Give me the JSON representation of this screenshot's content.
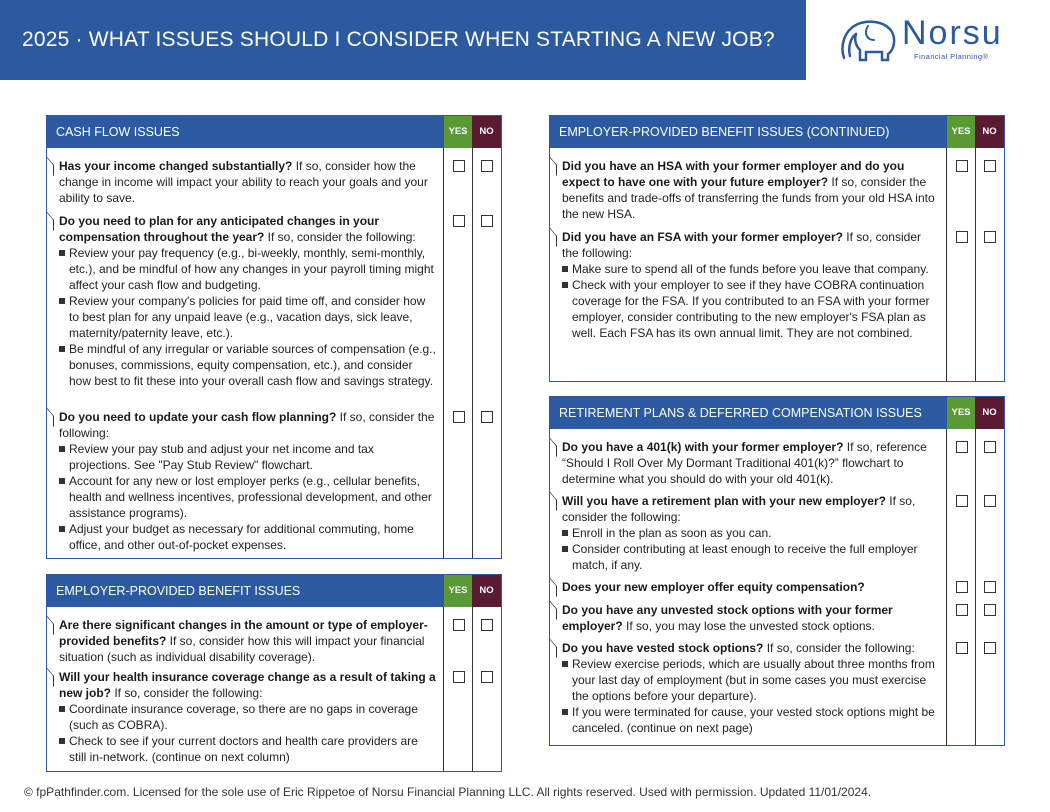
{
  "header": {
    "title": "2025 · WHAT ISSUES SHOULD I CONSIDER WHEN STARTING A NEW JOB?",
    "logo_name": "Norsu",
    "logo_tagline": "Financial Planning®",
    "logo_icon": "elephant-icon"
  },
  "columns": {
    "yes": "YES",
    "no": "NO"
  },
  "panels": {
    "cash_flow": {
      "title": "CASH FLOW ISSUES",
      "items": [
        {
          "q": "Has your income changed substantially?",
          "text": " If so, consider how the change in income will impact your ability to reach your goals and your ability to save.",
          "bullets": []
        },
        {
          "q": "Do you need to plan for any anticipated changes in your compensation throughout the year?",
          "text": " If so, consider the following:",
          "bullets": [
            "Review your pay frequency (e.g., bi-weekly, monthly, semi-monthly, etc.), and be mindful of how any changes in your payroll timing might affect your cash flow and budgeting.",
            "Review your company's policies for paid time off, and consider how to best plan for any unpaid leave (e.g., vacation days, sick leave, maternity/paternity leave, etc.).",
            "Be mindful of any irregular or variable sources of compensation (e.g., bonuses, commissions, equity compensation, etc.), and consider how best to fit these into your overall cash flow and savings strategy."
          ]
        },
        {
          "q": "Do you need to update your cash flow planning?",
          "text": " If so, consider the following:",
          "bullets": [
            "Review your pay stub and adjust your net income and tax projections. See \"Pay Stub Review\" flowchart.",
            "Account for any new or lost employer perks (e.g., cellular benefits, health and wellness incentives, professional development, and other assistance programs).",
            "Adjust your budget as necessary for additional commuting, home office, and other out-of-pocket expenses."
          ]
        }
      ]
    },
    "benefits": {
      "title": "EMPLOYER-PROVIDED BENEFIT ISSUES",
      "items": [
        {
          "q": "Are there significant changes in the amount or type of employer-provided benefits?",
          "text": " If so, consider how this will impact your financial situation (such as individual disability coverage).",
          "bullets": []
        },
        {
          "q": "Will your health insurance coverage change as a result of taking a new job?",
          "text": " If so, consider the following:",
          "bullets": [
            "Coordinate insurance coverage, so there are no gaps in coverage (such as COBRA).",
            "Check to see if your current doctors and health care providers are still in-network. (continue on next column)"
          ]
        }
      ]
    },
    "benefits_cont": {
      "title": "EMPLOYER-PROVIDED BENEFIT ISSUES (CONTINUED)",
      "items": [
        {
          "q": "Did you have an HSA with your former employer and do you expect to have one with your future employer?",
          "text": " If so, consider the benefits and trade-offs of transferring the funds from your old HSA into the new HSA.",
          "bullets": []
        },
        {
          "q": "Did you have an FSA with your former employer?",
          "text": " If so, consider the following:",
          "bullets": [
            "Make sure to spend all of the funds before you leave that company.",
            "Check with your employer to see if they have COBRA continuation coverage for the FSA. If you contributed to an FSA with your former employer, consider contributing to the new employer's FSA plan as well. Each FSA has its own annual limit. They are not combined."
          ]
        }
      ]
    },
    "retirement": {
      "title": "RETIREMENT PLANS & DEFERRED COMPENSATION ISSUES",
      "items": [
        {
          "q": "Do you have a 401(k) with your former employer?",
          "text": " If so, reference “Should I Roll Over My Dormant Traditional 401(k)?” flowchart to determine what you should do with your old 401(k).",
          "bullets": []
        },
        {
          "q": "Will you have a retirement plan with your new employer?",
          "text": " If so, consider the following:",
          "bullets": [
            "Enroll in the plan as soon as you can.",
            "Consider contributing at least enough to receive the full employer match, if any."
          ]
        },
        {
          "q": "Does your new employer offer equity compensation?",
          "text": "",
          "bullets": []
        },
        {
          "q": "Do you have any unvested stock options with your former employer?",
          "text": " If so, you may lose the unvested stock options.",
          "bullets": []
        },
        {
          "q": "Do you have vested stock options?",
          "text": " If so, consider the following:",
          "bullets": [
            "Review exercise periods, which are usually about three months from your last day of employment (but in some cases you must exercise the options before your departure).",
            "If you were terminated for cause, your vested stock options might be canceled. (continue on next page)"
          ]
        }
      ]
    }
  },
  "footer": "© fpPathfinder.com. Licensed for the sole use of Eric Rippetoe of Norsu Financial Planning LLC. All rights reserved. Used with permission. Updated 11/01/2024."
}
